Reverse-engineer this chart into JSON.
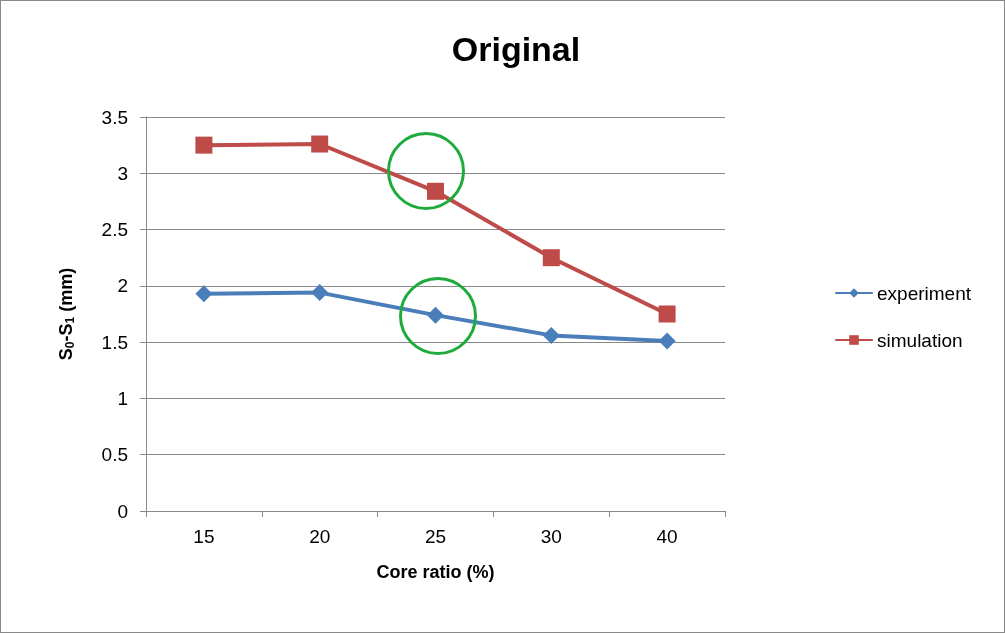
{
  "chart_data": {
    "type": "line",
    "title": "Original",
    "xlabel": "Core ratio (%)",
    "ylabel": "S$_{0}$-S$_{1}$ (mm)",
    "categories": [
      "15",
      "20",
      "25",
      "30",
      "40"
    ],
    "series": [
      {
        "name": "experiment",
        "color": "#4a7ebb",
        "marker": "diamond",
        "values": [
          1.93,
          1.94,
          1.74,
          1.56,
          1.51
        ]
      },
      {
        "name": "simulation",
        "color": "#be4b48",
        "marker": "square",
        "values": [
          3.25,
          3.26,
          2.84,
          2.25,
          1.75
        ]
      }
    ],
    "ylim": [
      0,
      3.5
    ],
    "yticks": [
      0,
      0.5,
      1,
      1.5,
      2,
      2.5,
      3,
      3.5
    ],
    "grid": "y",
    "legend": "right",
    "line_style": "solid"
  }
}
